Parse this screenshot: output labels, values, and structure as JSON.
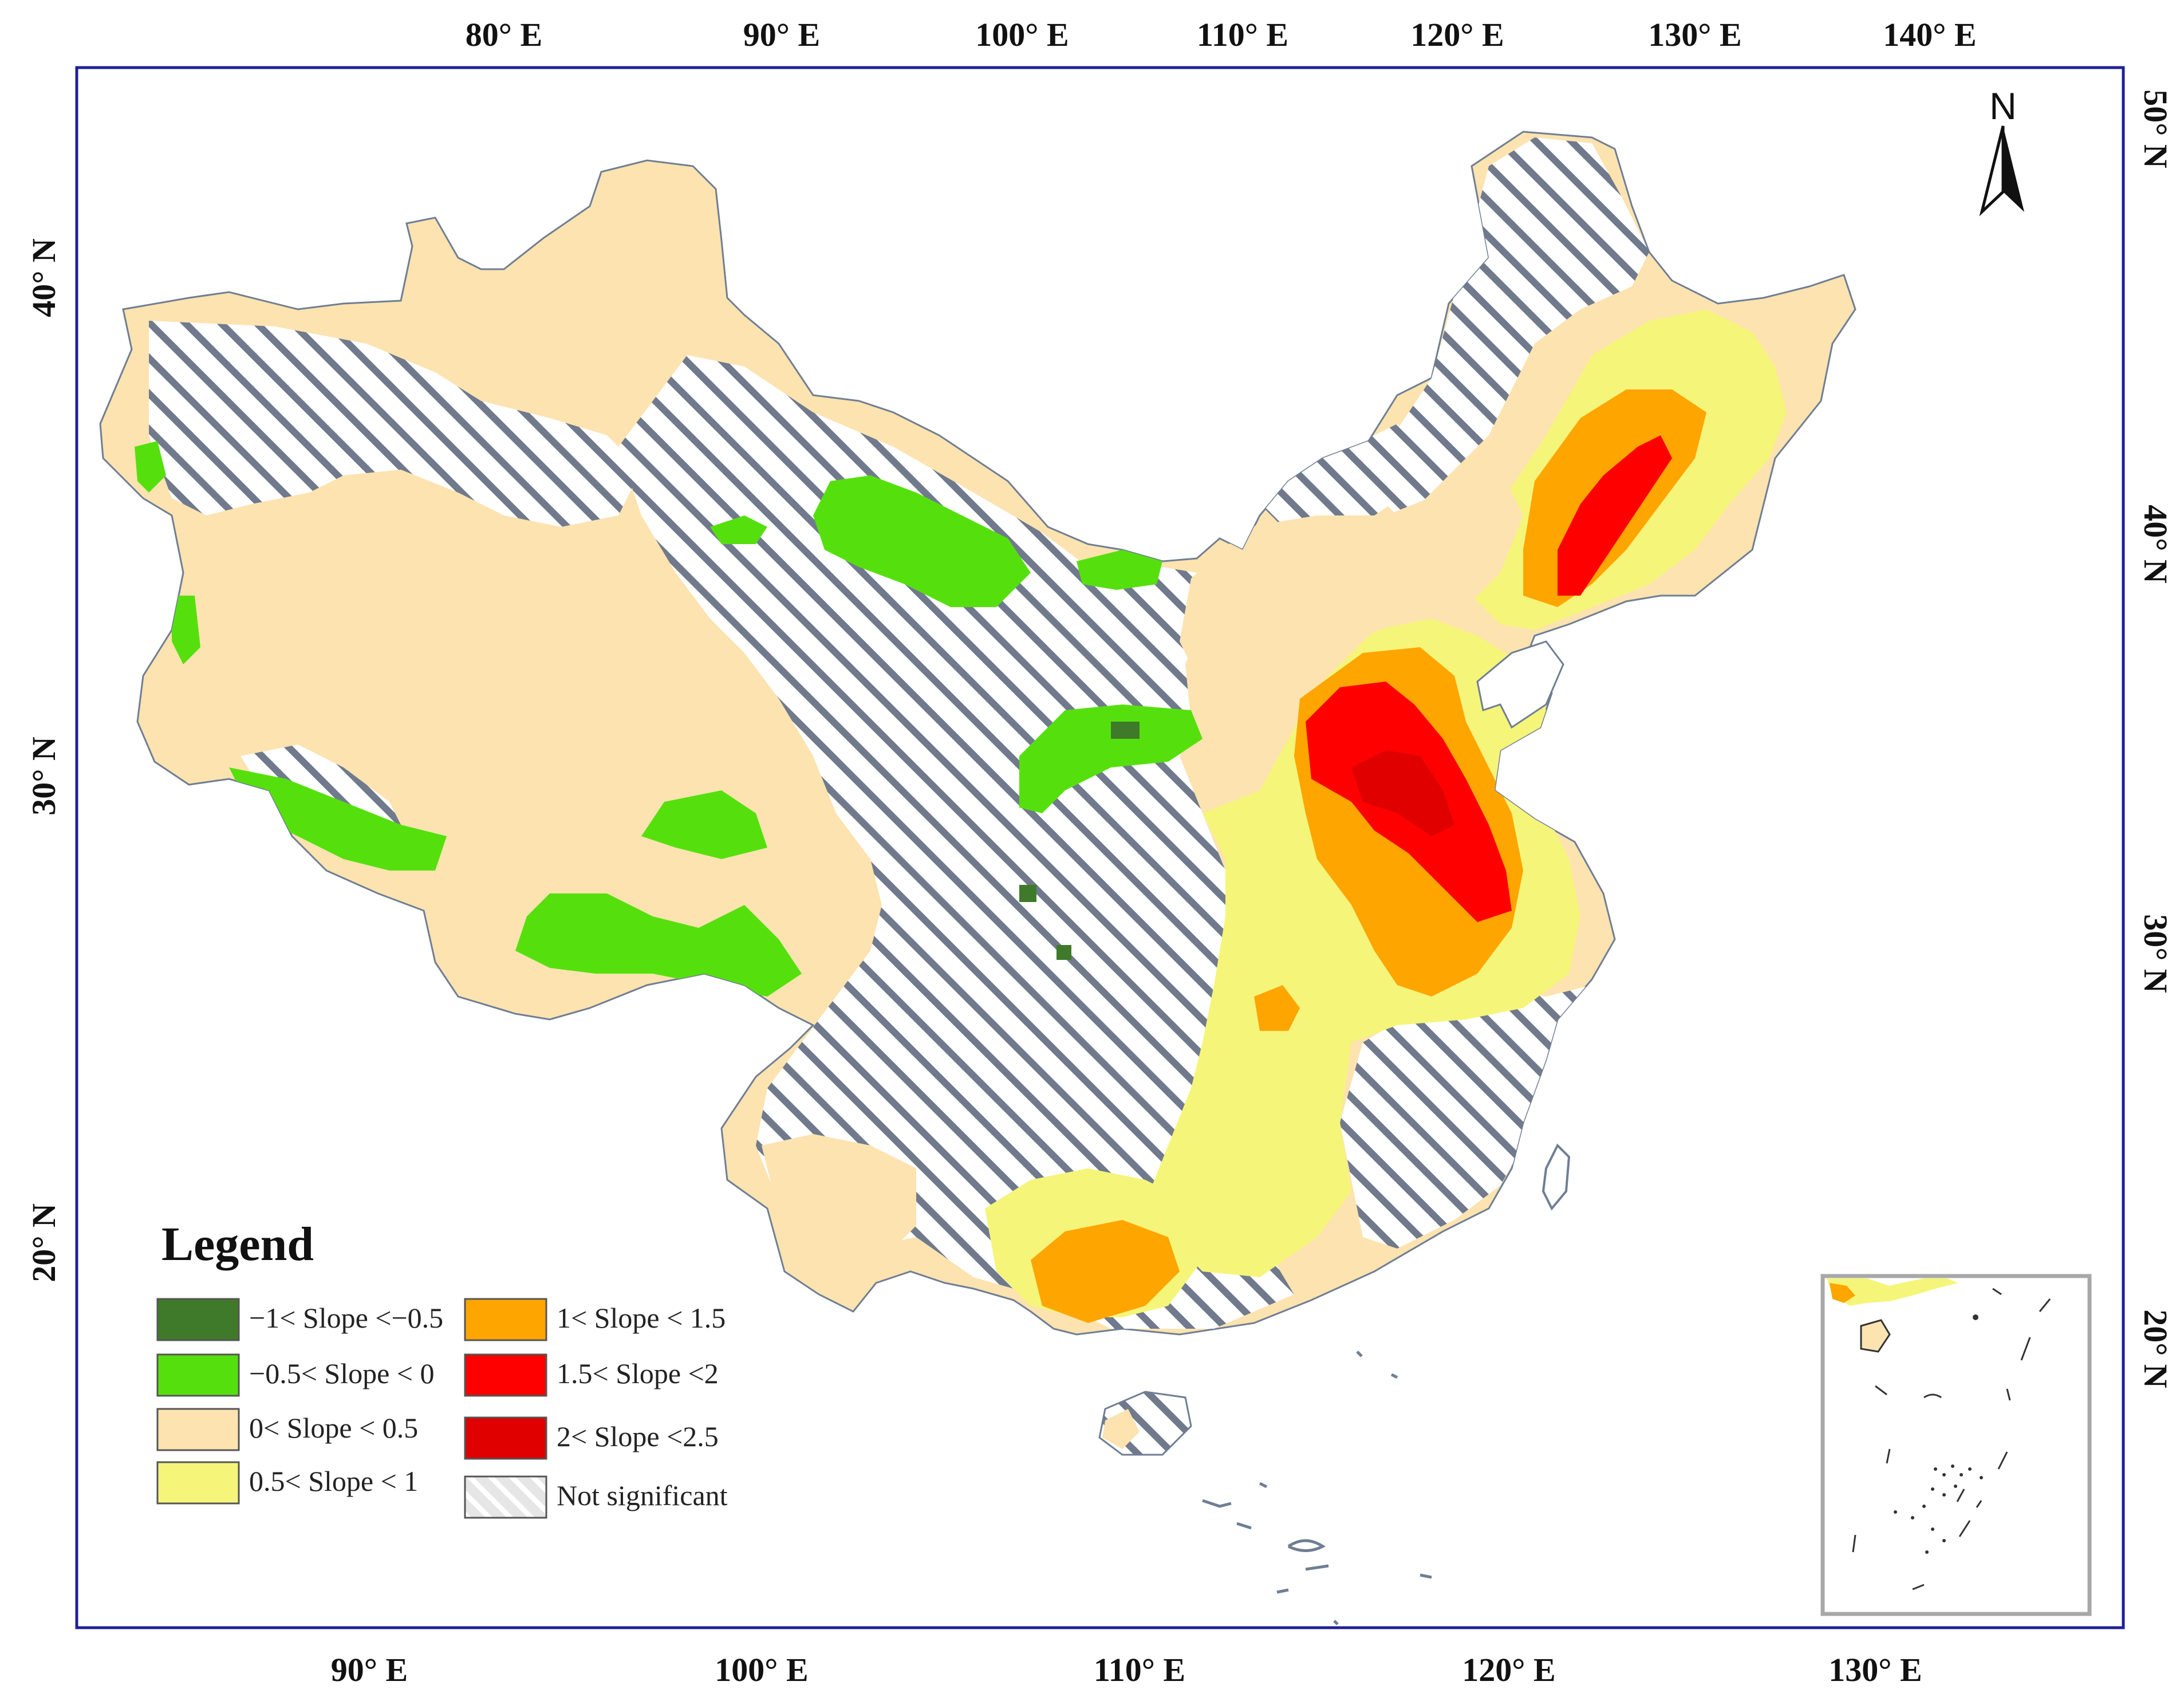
{
  "map": {
    "top_axis_labels": [
      "80° E",
      "90° E",
      "100° E",
      "110° E",
      "120° E",
      "130° E",
      "140° E"
    ],
    "bottom_axis_labels": [
      "90° E",
      "100° E",
      "110° E",
      "120° E",
      "130° E"
    ],
    "left_axis_labels": [
      "40° N",
      "30° N",
      "20° N"
    ],
    "right_axis_labels": [
      "50° N",
      "40° N",
      "30° N",
      "20° N"
    ],
    "north_arrow": {
      "label": "N",
      "icon": "north-arrow-icon"
    },
    "colors": {
      "frame": "#1f1f9a",
      "dark_green": "#3f7a2a",
      "bright_green": "#55e00e",
      "beige": "#fde3b0",
      "light_yellow": "#f5f57a",
      "orange": "#ffa500",
      "red": "#ff0000",
      "dark_red": "#e00000",
      "hatch_line": "#707a8c",
      "border_gray": "#6f7e93"
    }
  },
  "legend": {
    "title": "Legend",
    "items": [
      {
        "label": "−1< Slope <−0.5",
        "color": "#3f7a2a"
      },
      {
        "label": "−0.5< Slope < 0",
        "color": "#55e00e"
      },
      {
        "label": "0< Slope < 0.5",
        "color": "#fde3b0"
      },
      {
        "label": "0.5< Slope < 1",
        "color": "#f5f57a"
      },
      {
        "label": "1< Slope < 1.5",
        "color": "#ffa500"
      },
      {
        "label": "1.5< Slope <2",
        "color": "#ff0000"
      },
      {
        "label": "2< Slope <2.5",
        "color": "#e00000"
      },
      {
        "label": "Not significant",
        "color": "hatch"
      }
    ]
  }
}
